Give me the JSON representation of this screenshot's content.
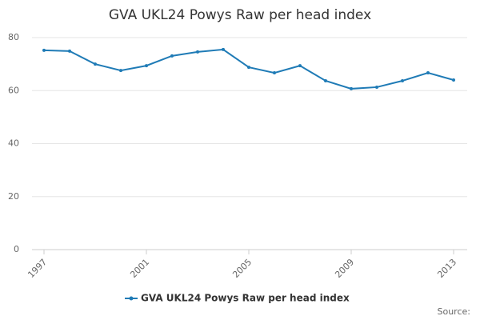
{
  "chart_data": {
    "type": "line",
    "title": "GVA UKL24 Powys Raw per head index",
    "x": [
      1997,
      1998,
      1999,
      2000,
      2001,
      2002,
      2003,
      2004,
      2005,
      2006,
      2007,
      2008,
      2009,
      2010,
      2011,
      2012,
      2013
    ],
    "series": [
      {
        "name": "GVA UKL24 Powys Raw per head index",
        "color": "#1f7bb6",
        "values": [
          75.2,
          74.9,
          70.0,
          67.6,
          69.4,
          73.1,
          74.6,
          75.5,
          68.8,
          66.7,
          69.4,
          63.7,
          60.7,
          61.3,
          63.7,
          66.7,
          64.0
        ]
      }
    ],
    "xlim": [
      1997,
      2013
    ],
    "xticks": [
      1997,
      2001,
      2005,
      2009,
      2013
    ],
    "ylim": [
      0,
      80
    ],
    "yticks": [
      0,
      20,
      40,
      60,
      80
    ],
    "grid": true,
    "legend": "bottom",
    "source": "Source:"
  }
}
